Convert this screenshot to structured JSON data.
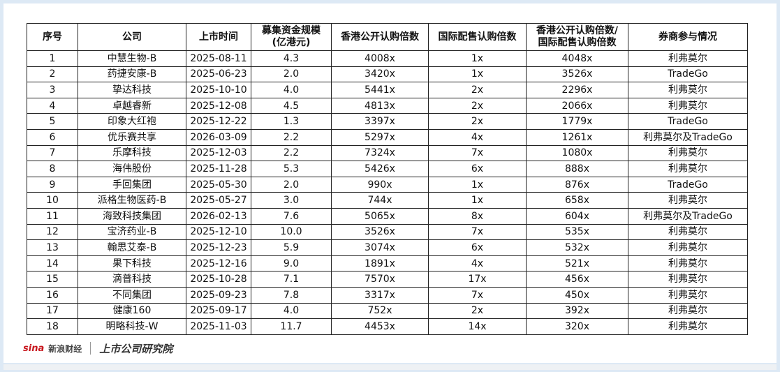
{
  "table": {
    "header": [
      "序号",
      "公司",
      "上市时间",
      [
        "募集资金规模",
        "(亿港元)"
      ],
      "香港公开认购倍数",
      "国际配售认购倍数",
      [
        "香港公开认购倍数/",
        "国际配售认购倍数"
      ],
      "券商参与情况"
    ],
    "rows": [
      [
        "1",
        "中慧生物-B",
        "2025-08-11",
        "4.3",
        "4008x",
        "1x",
        "4048x",
        "利弗莫尔"
      ],
      [
        "2",
        "药捷安康-B",
        "2025-06-23",
        "2.0",
        "3420x",
        "1x",
        "3526x",
        "TradeGo"
      ],
      [
        "3",
        "挚达科技",
        "2025-10-10",
        "4.0",
        "5441x",
        "2x",
        "2296x",
        "利弗莫尔"
      ],
      [
        "4",
        "卓越睿新",
        "2025-12-08",
        "4.5",
        "4813x",
        "2x",
        "2066x",
        "利弗莫尔"
      ],
      [
        "5",
        "印象大红袍",
        "2025-12-22",
        "1.3",
        "3397x",
        "2x",
        "1779x",
        "TradeGo"
      ],
      [
        "6",
        "优乐赛共享",
        "2026-03-09",
        "2.2",
        "5297x",
        "4x",
        "1261x",
        "利弗莫尔及TradeGo"
      ],
      [
        "7",
        "乐摩科技",
        "2025-12-03",
        "2.2",
        "7324x",
        "7x",
        "1080x",
        "利弗莫尔"
      ],
      [
        "8",
        "海伟股份",
        "2025-11-28",
        "5.3",
        "5426x",
        "6x",
        "888x",
        "利弗莫尔"
      ],
      [
        "9",
        "手回集团",
        "2025-05-30",
        "2.0",
        "990x",
        "1x",
        "876x",
        "TradeGo"
      ],
      [
        "10",
        "派格生物医药-B",
        "2025-05-27",
        "3.0",
        "744x",
        "1x",
        "658x",
        "利弗莫尔"
      ],
      [
        "11",
        "海致科技集团",
        "2026-02-13",
        "7.6",
        "5065x",
        "8x",
        "604x",
        "利弗莫尔及TradeGo"
      ],
      [
        "12",
        "宝济药业-B",
        "2025-12-10",
        "10.0",
        "3526x",
        "7x",
        "535x",
        "利弗莫尔"
      ],
      [
        "13",
        "翰思艾泰-B",
        "2025-12-23",
        "5.9",
        "3074x",
        "6x",
        "532x",
        "利弗莫尔"
      ],
      [
        "14",
        "果下科技",
        "2025-12-16",
        "9.0",
        "1891x",
        "4x",
        "521x",
        "利弗莫尔"
      ],
      [
        "15",
        "滴普科技",
        "2025-10-28",
        "7.1",
        "7570x",
        "17x",
        "456x",
        "利弗莫尔"
      ],
      [
        "16",
        "不同集团",
        "2025-09-23",
        "7.8",
        "3317x",
        "7x",
        "450x",
        "利弗莫尔"
      ],
      [
        "17",
        "健康160",
        "2025-09-17",
        "4.0",
        "752x",
        "2x",
        "392x",
        "利弗莫尔"
      ],
      [
        "18",
        "明略科技-W",
        "2025-11-03",
        "11.7",
        "4453x",
        "14x",
        "320x",
        "利弗莫尔"
      ]
    ]
  },
  "footer": {
    "logo_latin": "sina",
    "logo_name": "新浪财经",
    "institute": "上市公司研究院"
  }
}
